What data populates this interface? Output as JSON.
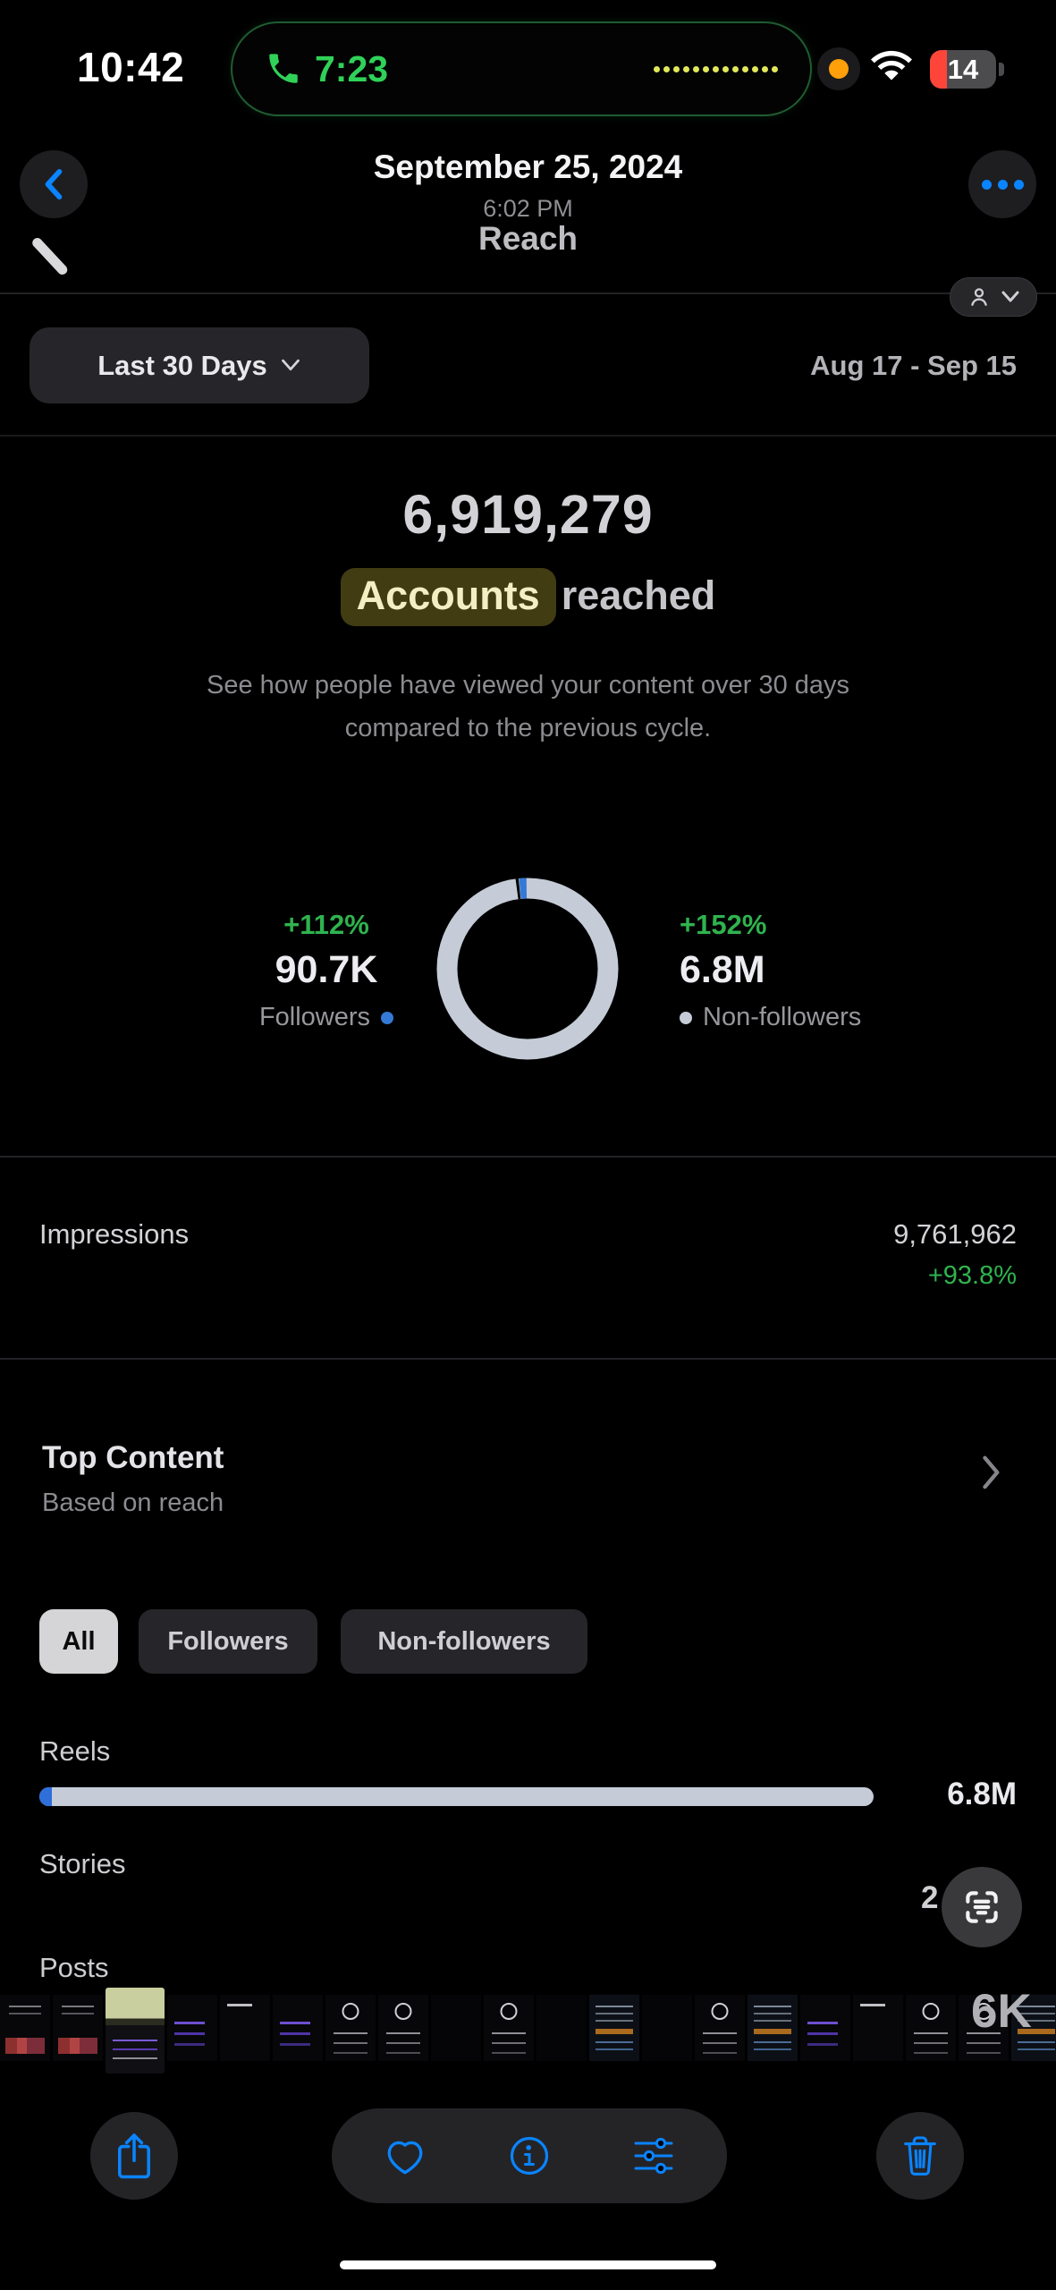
{
  "colors": {
    "accent_blue": "#0a84ff",
    "call_green": "#30d158",
    "growth_green": "#2fb34e",
    "donut_gray": "#c5ccd7",
    "donut_blue": "#3579d6",
    "battery_red": "#ff453a",
    "mic_orange": "#ff9f0a",
    "highlight_bg": "#423c13",
    "highlight_text": "#f4efc2"
  },
  "status_bar": {
    "time": "10:42",
    "call_duration": "7:23",
    "battery_level": "14",
    "waveform_dots": 13
  },
  "photos_header": {
    "date": "September 25, 2024",
    "time": "6:02 PM"
  },
  "insights": {
    "screen_title": "Reach",
    "period_button": "Last 30 Days",
    "date_range": "Aug 17 - Sep 15",
    "total_reach": "6,919,279",
    "metric_highlight": "Accounts",
    "metric_rest": "reached",
    "description_line1": "See how people have viewed your content over 30 days",
    "description_line2": "compared to the previous cycle.",
    "followers_stat": {
      "change": "+112%",
      "value": "90.7K",
      "label": "Followers"
    },
    "non_followers_stat": {
      "change": "+152%",
      "value": "6.8M",
      "label": "Non-followers"
    },
    "impressions": {
      "label": "Impressions",
      "value": "9,761,962",
      "change": "+93.8%"
    },
    "top_content": {
      "title": "Top Content",
      "subtitle": "Based on reach"
    },
    "tabs": {
      "items": [
        "All",
        "Followers",
        "Non-followers"
      ],
      "selected": "All"
    },
    "rows": {
      "reels": {
        "label": "Reels",
        "value": "6.8M",
        "bar_fill_pct": 100,
        "bar_followers_pct": 1.5
      },
      "stories": {
        "label": "Stories",
        "value_partial": "2"
      },
      "posts": {
        "label": "Posts",
        "value_partial": "6K"
      }
    }
  },
  "chart_data": {
    "type": "pie",
    "title": "Accounts reached split",
    "total_label": "6,919,279",
    "segments": [
      {
        "label": "Followers",
        "value_display": "90.7K",
        "pct": 1.3,
        "change": "+112%",
        "color": "#3579d6"
      },
      {
        "label": "Non-followers",
        "value_display": "6.8M",
        "pct": 98.7,
        "change": "+152%",
        "color": "#c5ccd7"
      }
    ],
    "legend_position": "sides"
  },
  "icons": [
    "back-chevron-icon",
    "more-ellipsis-icon",
    "phone-icon",
    "wifi-icon",
    "battery-icon",
    "mic-indicator-dot",
    "person-audience-icon",
    "chevron-down-icon",
    "chevron-right-icon",
    "live-text-icon",
    "share-icon",
    "favorite-heart-icon",
    "info-icon",
    "adjust-sliders-icon",
    "delete-trash-icon"
  ],
  "thumbnails": [
    {
      "variant": "v-photo"
    },
    {
      "variant": "v-photo"
    },
    {
      "variant": "v-sel"
    },
    {
      "variant": "v-purple"
    },
    {
      "variant": "v-text"
    },
    {
      "variant": "v-purple"
    },
    {
      "variant": "v-ins"
    },
    {
      "variant": "v-ins"
    },
    {
      "variant": "v-blank"
    },
    {
      "variant": "v-ins"
    },
    {
      "variant": "v-blank"
    },
    {
      "variant": "v-note"
    },
    {
      "variant": "v-blank"
    },
    {
      "variant": "v-ins"
    },
    {
      "variant": "v-note"
    },
    {
      "variant": "v-purple"
    },
    {
      "variant": "v-text"
    },
    {
      "variant": "v-ins"
    },
    {
      "variant": "v-ins"
    },
    {
      "variant": "v-note"
    }
  ]
}
